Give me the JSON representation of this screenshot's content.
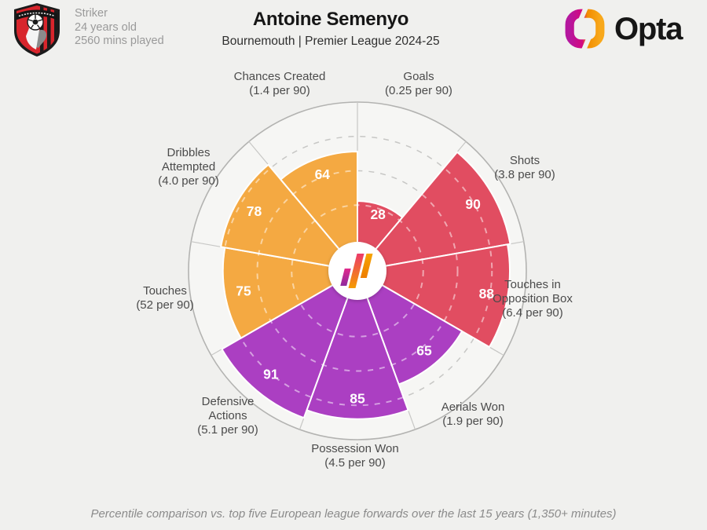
{
  "header": {
    "club_badge_name": "AFC Bournemouth crest",
    "player_info": {
      "position": "Striker",
      "age": "24 years old",
      "minutes": "2560 mins played"
    },
    "title": "Antoine Semenyo",
    "subtitle": "Bournemouth | Premier League 2024-25",
    "brand_wordmark": "Opta"
  },
  "footer": {
    "caption": "Percentile comparison vs. top five European league forwards over the last 15 years (1,350+ minutes)"
  },
  "colors": {
    "attacking_red": "#e14d61",
    "defending_purple": "#ab3fc2",
    "possession_orange": "#f4a942",
    "background": "#f0f0ee",
    "chart_inner_bg": "#f6f6f4",
    "grid_gray": "#c7c7c5",
    "outer_ring_gray": "#b3b3b1",
    "value_text": "#ffffff",
    "category_text": "#4b4b4b"
  },
  "chart_data": {
    "type": "pie",
    "variant": "pizza-percentile-radar",
    "scale_min": 0,
    "scale_max": 100,
    "grid_rings": [
      25,
      50,
      75,
      100
    ],
    "start_angle_deg": 0,
    "slice_span_deg": 40,
    "legend_position": "none",
    "slices": [
      {
        "label": "Goals",
        "per90": "(0.25 per 90)",
        "value": 28,
        "color": "#e14d61"
      },
      {
        "label": "Shots",
        "per90": "(3.8 per 90)",
        "value": 90,
        "color": "#e14d61"
      },
      {
        "label": "Touches in Opposition Box",
        "per90": "(6.4 per 90)",
        "value": 88,
        "color": "#e14d61"
      },
      {
        "label": "Aerials Won",
        "per90": "(1.9 per 90)",
        "value": 65,
        "color": "#ab3fc2"
      },
      {
        "label": "Possession Won",
        "per90": "(4.5 per 90)",
        "value": 85,
        "color": "#ab3fc2"
      },
      {
        "label": "Defensive Actions",
        "per90": "(5.1 per 90)",
        "value": 91,
        "color": "#ab3fc2"
      },
      {
        "label": "Touches",
        "per90": "(52 per 90)",
        "value": 75,
        "color": "#f4a942"
      },
      {
        "label": "Dribbles Attempted",
        "per90": "(4.0 per 90)",
        "value": 78,
        "color": "#f4a942"
      },
      {
        "label": "Chances Created",
        "per90": "(1.4 per 90)",
        "value": 64,
        "color": "#f4a942"
      }
    ]
  }
}
